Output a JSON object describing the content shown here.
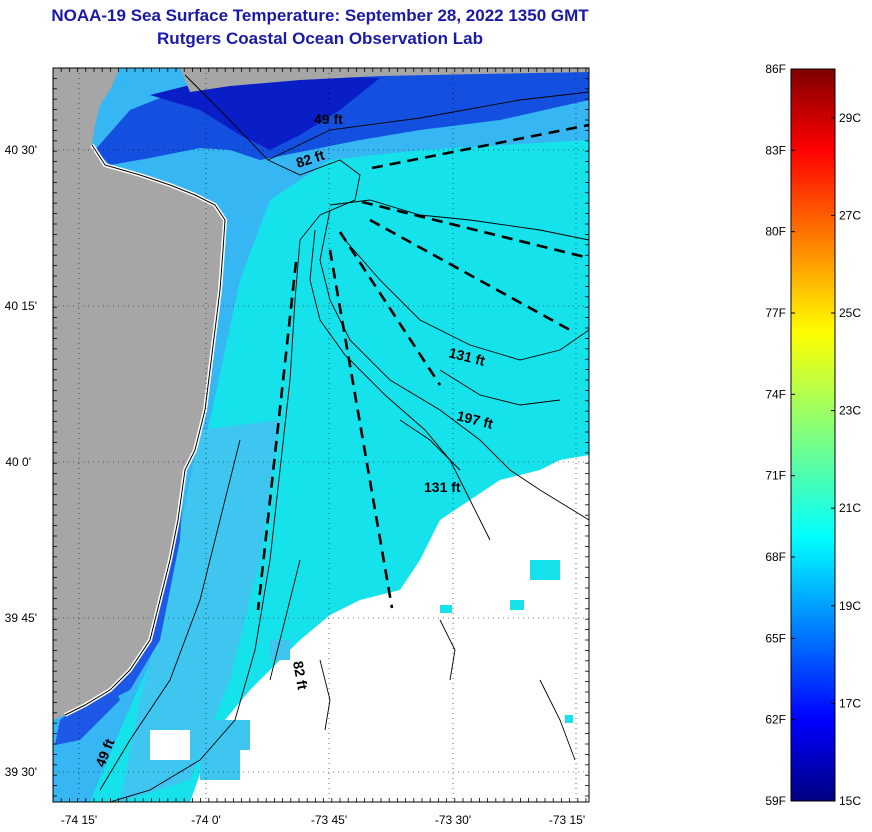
{
  "title": {
    "line1": "NOAA-19 Sea Surface Temperature:  September 28, 2022 1350 GMT",
    "line2": "Rutgers Coastal Ocean Observation Lab"
  },
  "map": {
    "lon_ticks": [
      "-74 15'",
      "-74 0'",
      "-73 45'",
      "-73 30'",
      "-73 15'"
    ],
    "lat_ticks": [
      "40 30'",
      "40 15'",
      "40 0'",
      "39 45'",
      "39 30'"
    ],
    "contour_labels": [
      "49 ft",
      "82 ft",
      "131 ft",
      "197 ft",
      "131 ft",
      "82 ft",
      "49 ft"
    ],
    "colors": {
      "land": "#a6a6a6",
      "cloud": "#ffffff",
      "sst_warm": "#13e0e8",
      "sst_mid": "#2ea0f0",
      "sst_cool": "#0a2ad6",
      "sst_cold": "#0000a8"
    }
  },
  "colorbar": {
    "fahrenheit": [
      "86F",
      "83F",
      "80F",
      "77F",
      "74F",
      "71F",
      "68F",
      "65F",
      "62F",
      "59F"
    ],
    "celsius": [
      "29C",
      "27C",
      "25C",
      "23C",
      "21C",
      "19C",
      "17C",
      "15C"
    ],
    "range_f": [
      59,
      86
    ],
    "range_c": [
      15,
      30
    ],
    "scale": "jet"
  }
}
